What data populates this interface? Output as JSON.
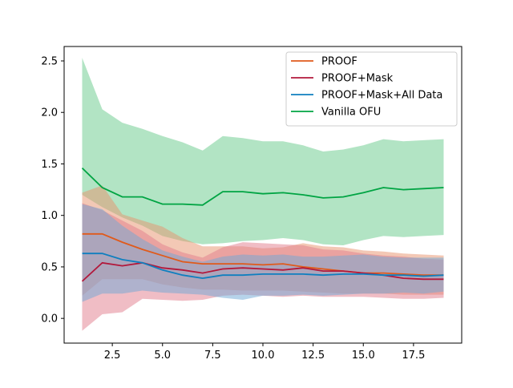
{
  "chart_data": {
    "type": "line",
    "title": "",
    "xlabel": "",
    "ylabel": "",
    "xlim": [
      0.1,
      19.9
    ],
    "ylim": [
      -0.24,
      2.64
    ],
    "xticks": [
      2.5,
      5.0,
      7.5,
      10.0,
      12.5,
      15.0,
      17.5
    ],
    "xtick_labels": [
      "2.5",
      "5.0",
      "7.5",
      "10.0",
      "12.5",
      "15.0",
      "17.5"
    ],
    "yticks": [
      0.0,
      0.5,
      1.0,
      1.5,
      2.0,
      2.5
    ],
    "ytick_labels": [
      "0.0",
      "0.5",
      "1.0",
      "1.5",
      "2.0",
      "2.5"
    ],
    "grid": false,
    "legend_position": "top-right",
    "x": [
      1,
      2,
      3,
      4,
      5,
      6,
      7,
      8,
      9,
      10,
      11,
      12,
      13,
      14,
      15,
      16,
      17,
      18,
      19
    ],
    "series": [
      {
        "name": "Vanilla OFU",
        "color": "#00a443",
        "band_color": "#66c98a",
        "mean": [
          1.46,
          1.27,
          1.18,
          1.18,
          1.11,
          1.11,
          1.1,
          1.23,
          1.23,
          1.21,
          1.22,
          1.2,
          1.17,
          1.18,
          1.22,
          1.27,
          1.25,
          1.26,
          1.27
        ],
        "upper": [
          2.53,
          2.03,
          1.9,
          1.84,
          1.77,
          1.71,
          1.63,
          1.77,
          1.75,
          1.72,
          1.72,
          1.68,
          1.62,
          1.64,
          1.68,
          1.74,
          1.72,
          1.73,
          1.74
        ],
        "lower": [
          1.2,
          1.08,
          0.98,
          0.9,
          0.8,
          0.75,
          0.72,
          0.73,
          0.75,
          0.76,
          0.78,
          0.76,
          0.72,
          0.71,
          0.76,
          0.8,
          0.79,
          0.8,
          0.81
        ]
      },
      {
        "name": "PROOF",
        "color": "#e05a1b",
        "band_color": "#e8926b",
        "mean": [
          0.82,
          0.82,
          0.74,
          0.67,
          0.61,
          0.55,
          0.53,
          0.53,
          0.53,
          0.52,
          0.53,
          0.5,
          0.48,
          0.46,
          0.44,
          0.44,
          0.43,
          0.42,
          0.42
        ],
        "upper": [
          1.22,
          1.29,
          1.01,
          0.95,
          0.89,
          0.78,
          0.7,
          0.7,
          0.7,
          0.68,
          0.69,
          0.73,
          0.7,
          0.69,
          0.66,
          0.65,
          0.63,
          0.62,
          0.61
        ],
        "lower": [
          0.22,
          0.38,
          0.38,
          0.38,
          0.33,
          0.3,
          0.28,
          0.28,
          0.27,
          0.27,
          0.27,
          0.26,
          0.25,
          0.24,
          0.24,
          0.24,
          0.23,
          0.23,
          0.23
        ]
      },
      {
        "name": "PROOF+Mask",
        "color": "#b2183b",
        "band_color": "#e27c8c",
        "mean": [
          0.36,
          0.54,
          0.51,
          0.54,
          0.49,
          0.47,
          0.44,
          0.48,
          0.49,
          0.48,
          0.47,
          0.49,
          0.46,
          0.46,
          0.44,
          0.42,
          0.39,
          0.38,
          0.38
        ],
        "upper": [
          1.12,
          1.05,
          0.95,
          0.85,
          0.72,
          0.64,
          0.59,
          0.69,
          0.74,
          0.73,
          0.72,
          0.71,
          0.67,
          0.66,
          0.63,
          0.61,
          0.6,
          0.58,
          0.57
        ],
        "lower": [
          -0.12,
          0.04,
          0.06,
          0.19,
          0.18,
          0.17,
          0.18,
          0.22,
          0.23,
          0.22,
          0.21,
          0.22,
          0.21,
          0.21,
          0.21,
          0.2,
          0.19,
          0.19,
          0.2
        ]
      },
      {
        "name": "PROOF+Mask+All Data",
        "color": "#0f7fbf",
        "band_color": "#6ea8d6",
        "mean": [
          0.63,
          0.63,
          0.57,
          0.54,
          0.47,
          0.42,
          0.39,
          0.42,
          0.42,
          0.43,
          0.43,
          0.43,
          0.42,
          0.43,
          0.43,
          0.42,
          0.42,
          0.41,
          0.42
        ],
        "upper": [
          1.11,
          1.06,
          0.9,
          0.77,
          0.66,
          0.6,
          0.55,
          0.6,
          0.62,
          0.61,
          0.62,
          0.6,
          0.6,
          0.61,
          0.62,
          0.6,
          0.59,
          0.59,
          0.59
        ],
        "lower": [
          0.16,
          0.24,
          0.24,
          0.27,
          0.25,
          0.24,
          0.23,
          0.2,
          0.18,
          0.22,
          0.22,
          0.23,
          0.22,
          0.23,
          0.24,
          0.24,
          0.25,
          0.24,
          0.26
        ]
      }
    ],
    "legend_order": [
      "PROOF",
      "PROOF+Mask",
      "PROOF+Mask+All Data",
      "Vanilla OFU"
    ]
  }
}
